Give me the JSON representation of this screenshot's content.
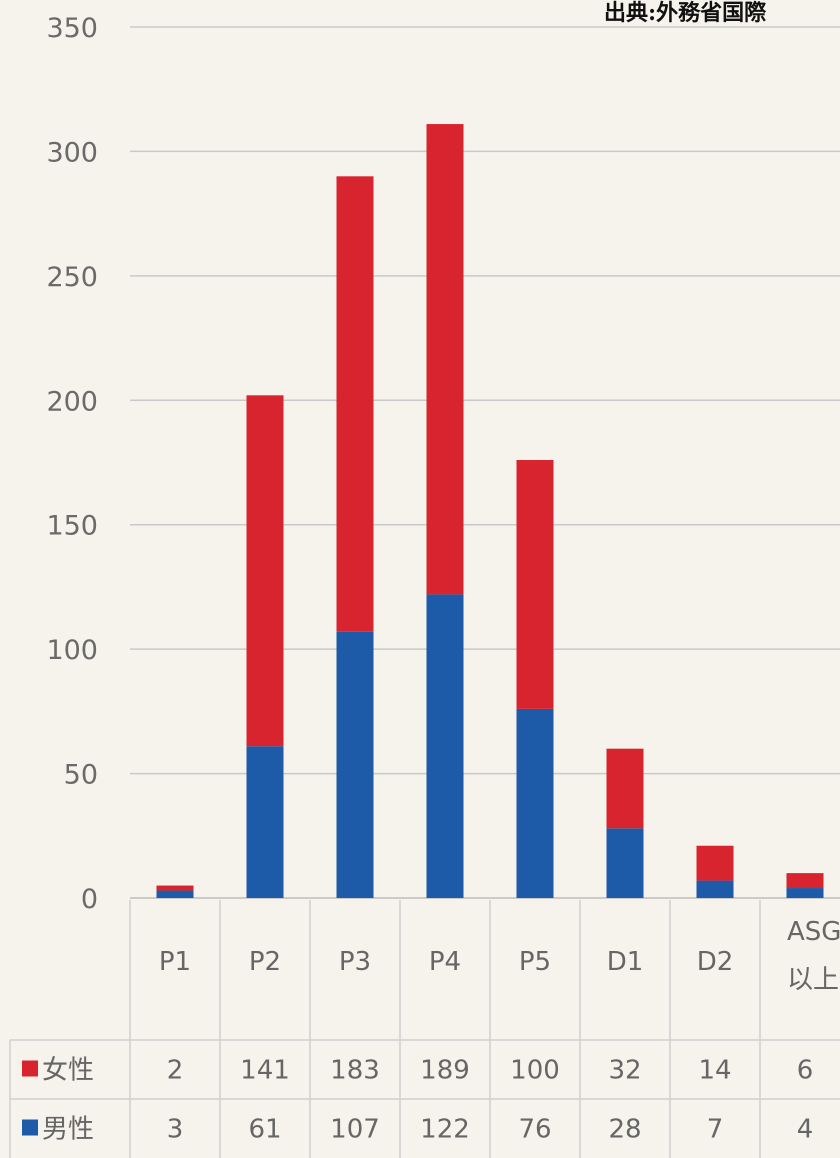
{
  "source_note": "出典:外務省国際",
  "chart_data": {
    "type": "bar",
    "stacked": true,
    "categories": [
      "P1",
      "P2",
      "P3",
      "P4",
      "P5",
      "D1",
      "D2",
      [
        "ASG",
        "以上"
      ]
    ],
    "series": [
      {
        "name": "女性",
        "color": "#d8242e",
        "values": [
          2,
          141,
          183,
          189,
          100,
          32,
          14,
          6
        ]
      },
      {
        "name": "男性",
        "color": "#1d5aa8",
        "values": [
          3,
          61,
          107,
          122,
          76,
          28,
          7,
          4
        ]
      }
    ],
    "stack_order": [
      "男性",
      "女性"
    ],
    "y_ticks": [
      0,
      50,
      100,
      150,
      200,
      250,
      300,
      350
    ],
    "ylim": [
      0,
      350
    ],
    "grid": true,
    "legend": "data-table-below"
  }
}
